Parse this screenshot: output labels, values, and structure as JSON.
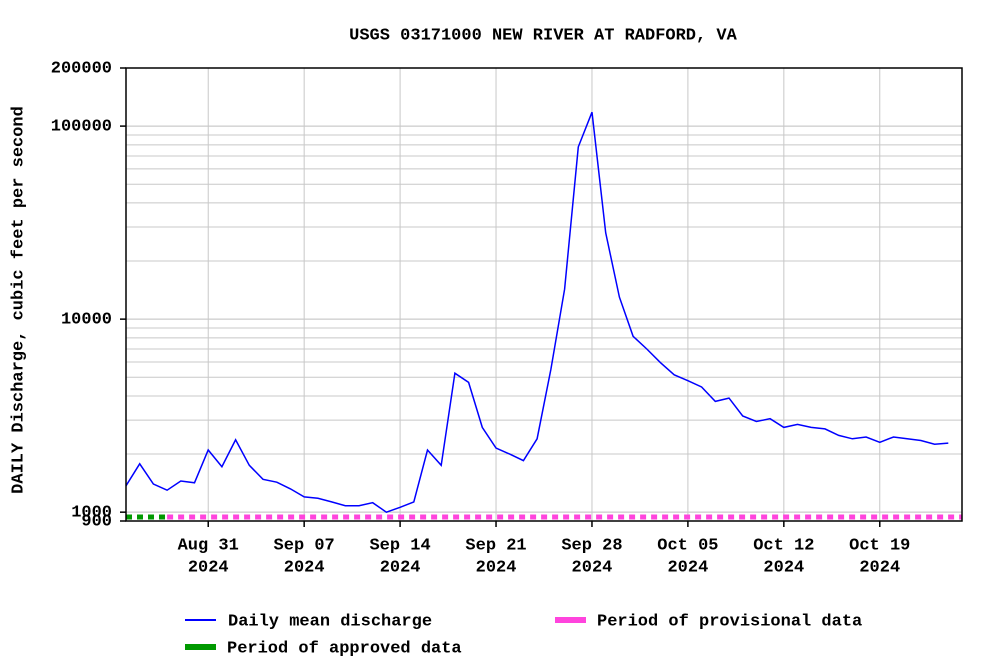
{
  "chart_data": {
    "type": "line",
    "title": "USGS 03171000 NEW RIVER AT RADFORD, VA",
    "y_label": "DAILY Discharge, cubic feet per second",
    "log_y": true,
    "grid": true,
    "ylim": [
      900,
      200000
    ],
    "yticks": [
      900,
      1000,
      10000,
      100000,
      200000
    ],
    "xlim": [
      "2024-08-25",
      "2024-10-25"
    ],
    "xticks": [
      {
        "value": "2024-08-31",
        "label": "Aug 31",
        "year": "2024"
      },
      {
        "value": "2024-09-07",
        "label": "Sep 07",
        "year": "2024"
      },
      {
        "value": "2024-09-14",
        "label": "Sep 14",
        "year": "2024"
      },
      {
        "value": "2024-09-21",
        "label": "Sep 21",
        "year": "2024"
      },
      {
        "value": "2024-09-28",
        "label": "Sep 28",
        "year": "2024"
      },
      {
        "value": "2024-10-05",
        "label": "Oct 05",
        "year": "2024"
      },
      {
        "value": "2024-10-12",
        "label": "Oct 12",
        "year": "2024"
      },
      {
        "value": "2024-10-19",
        "label": "Oct 19",
        "year": "2024"
      }
    ],
    "x": [
      "2024-08-25",
      "2024-08-26",
      "2024-08-27",
      "2024-08-28",
      "2024-08-29",
      "2024-08-30",
      "2024-08-31",
      "2024-09-01",
      "2024-09-02",
      "2024-09-03",
      "2024-09-04",
      "2024-09-05",
      "2024-09-06",
      "2024-09-07",
      "2024-09-08",
      "2024-09-09",
      "2024-09-10",
      "2024-09-11",
      "2024-09-12",
      "2024-09-13",
      "2024-09-14",
      "2024-09-15",
      "2024-09-16",
      "2024-09-17",
      "2024-09-18",
      "2024-09-19",
      "2024-09-20",
      "2024-09-21",
      "2024-09-22",
      "2024-09-23",
      "2024-09-24",
      "2024-09-25",
      "2024-09-26",
      "2024-09-27",
      "2024-09-28",
      "2024-09-29",
      "2024-09-30",
      "2024-10-01",
      "2024-10-02",
      "2024-10-03",
      "2024-10-04",
      "2024-10-05",
      "2024-10-06",
      "2024-10-07",
      "2024-10-08",
      "2024-10-09",
      "2024-10-10",
      "2024-10-11",
      "2024-10-12",
      "2024-10-13",
      "2024-10-14",
      "2024-10-15",
      "2024-10-16",
      "2024-10-17",
      "2024-10-18",
      "2024-10-19",
      "2024-10-20",
      "2024-10-21",
      "2024-10-22",
      "2024-10-23",
      "2024-10-24"
    ],
    "series": [
      {
        "name": "Daily mean discharge",
        "color": "#0000ff",
        "values": [
          1370,
          1780,
          1400,
          1300,
          1450,
          1420,
          2100,
          1720,
          2370,
          1750,
          1480,
          1430,
          1320,
          1200,
          1180,
          1130,
          1080,
          1080,
          1120,
          1000,
          1060,
          1130,
          2100,
          1750,
          5250,
          4700,
          2750,
          2150,
          2000,
          1850,
          2400,
          5500,
          14300,
          78000,
          118000,
          28000,
          13000,
          8150,
          7000,
          5950,
          5150,
          4800,
          4450,
          3750,
          3900,
          3150,
          2950,
          3050,
          2750,
          2850,
          2750,
          2700,
          2500,
          2400,
          2450,
          2300,
          2450,
          2400,
          2350,
          2250,
          2280
        ]
      }
    ],
    "periods": [
      {
        "name": "Period of provisional data",
        "color": "#ff44dd",
        "x": [
          "2024-08-28",
          "2024-10-25"
        ]
      },
      {
        "name": "Period of approved data",
        "color": "#009900",
        "x": [
          "2024-08-25",
          "2024-08-28"
        ]
      }
    ]
  }
}
